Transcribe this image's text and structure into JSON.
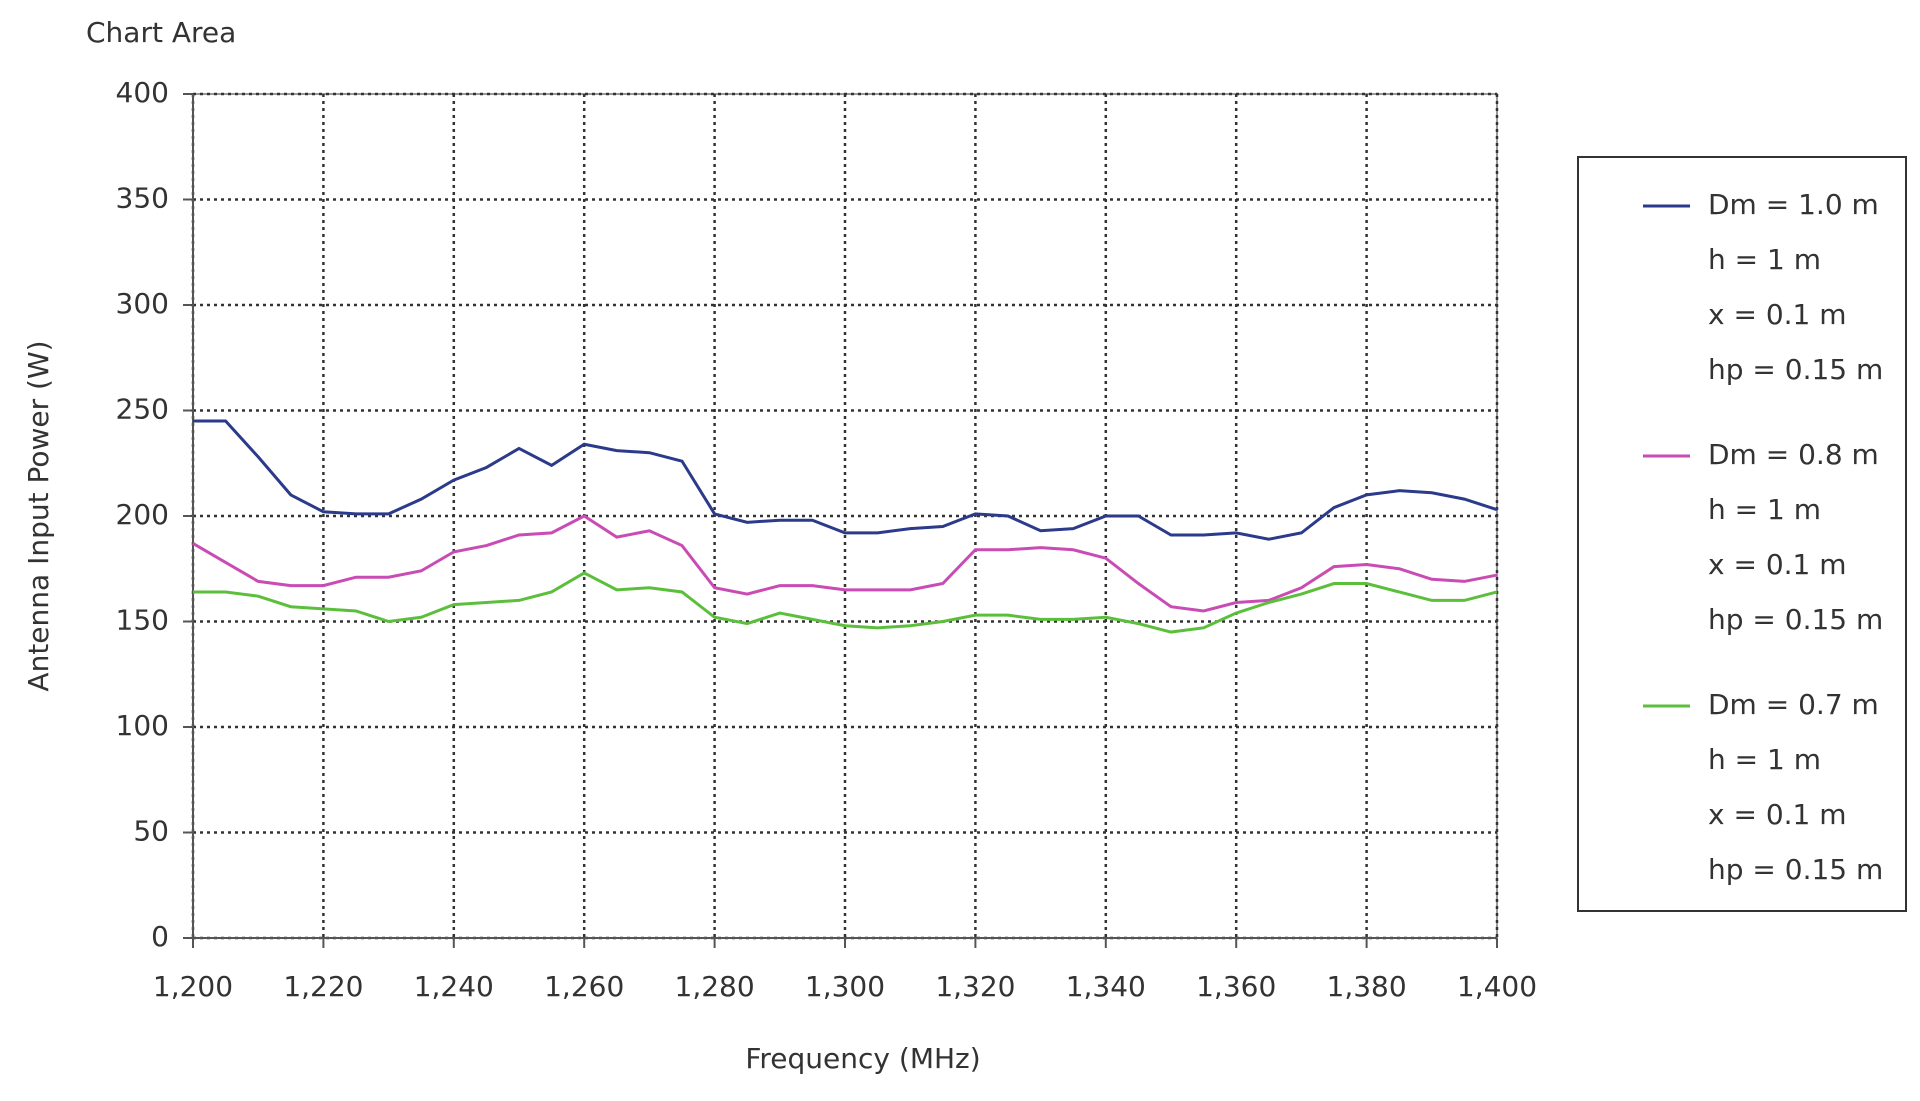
{
  "chart_data": {
    "type": "line",
    "label": "Chart Area",
    "x_label": "Frequency (MHz)",
    "y_label": "Antenna Input Power (W)",
    "x": [
      1200,
      1205,
      1210,
      1215,
      1220,
      1225,
      1230,
      1235,
      1240,
      1245,
      1250,
      1255,
      1260,
      1265,
      1270,
      1275,
      1280,
      1285,
      1290,
      1295,
      1300,
      1305,
      1310,
      1315,
      1320,
      1325,
      1330,
      1335,
      1340,
      1345,
      1350,
      1355,
      1360,
      1365,
      1370,
      1375,
      1380,
      1385,
      1390,
      1395,
      1400
    ],
    "series": [
      {
        "name": "Dm = 1.0 m",
        "details": [
          "h = 1 m",
          "x = 0.1 m",
          "hp = 0.15 m"
        ],
        "color": "#2b3a8a",
        "values": [
          245,
          245,
          228,
          210,
          202,
          201,
          201,
          208,
          217,
          223,
          232,
          224,
          234,
          231,
          230,
          226,
          201,
          197,
          198,
          198,
          192,
          192,
          194,
          195,
          201,
          200,
          193,
          194,
          200,
          200,
          191,
          191,
          192,
          189,
          192,
          204,
          210,
          212,
          211,
          208,
          203
        ]
      },
      {
        "name": "Dm = 0.8 m",
        "details": [
          "h = 1 m",
          "x = 0.1 m",
          "hp = 0.15 m"
        ],
        "color": "#c94bb4",
        "values": [
          187,
          178,
          169,
          167,
          167,
          171,
          171,
          174,
          183,
          186,
          191,
          192,
          200,
          190,
          193,
          186,
          166,
          163,
          167,
          167,
          165,
          165,
          165,
          168,
          184,
          184,
          185,
          184,
          180,
          168,
          157,
          155,
          159,
          160,
          166,
          176,
          177,
          175,
          170,
          169,
          172
        ]
      },
      {
        "name": "Dm = 0.7 m",
        "details": [
          "h = 1 m",
          "x = 0.1 m",
          "hp = 0.15 m"
        ],
        "color": "#5cbf3c",
        "values": [
          164,
          164,
          162,
          157,
          156,
          155,
          150,
          152,
          158,
          159,
          160,
          164,
          173,
          165,
          166,
          164,
          152,
          149,
          154,
          151,
          148,
          147,
          148,
          150,
          153,
          153,
          151,
          151,
          152,
          149,
          145,
          147,
          154,
          159,
          163,
          168,
          168,
          164,
          160,
          160,
          164
        ]
      }
    ],
    "xlim": [
      1200,
      1400
    ],
    "xticks": [
      {
        "value": 1200,
        "label": "1,200"
      },
      {
        "value": 1220,
        "label": "1,220"
      },
      {
        "value": 1240,
        "label": "1,240"
      },
      {
        "value": 1260,
        "label": "1,260"
      },
      {
        "value": 1280,
        "label": "1,280"
      },
      {
        "value": 1300,
        "label": "1,300"
      },
      {
        "value": 1320,
        "label": "1,320"
      },
      {
        "value": 1340,
        "label": "1,340"
      },
      {
        "value": 1360,
        "label": "1,360"
      },
      {
        "value": 1380,
        "label": "1,380"
      },
      {
        "value": 1400,
        "label": "1,400"
      }
    ],
    "ylim": [
      0,
      400
    ],
    "yticks": [
      0,
      50,
      100,
      150,
      200,
      250,
      300,
      350,
      400
    ],
    "grid": true,
    "legend": "right"
  }
}
